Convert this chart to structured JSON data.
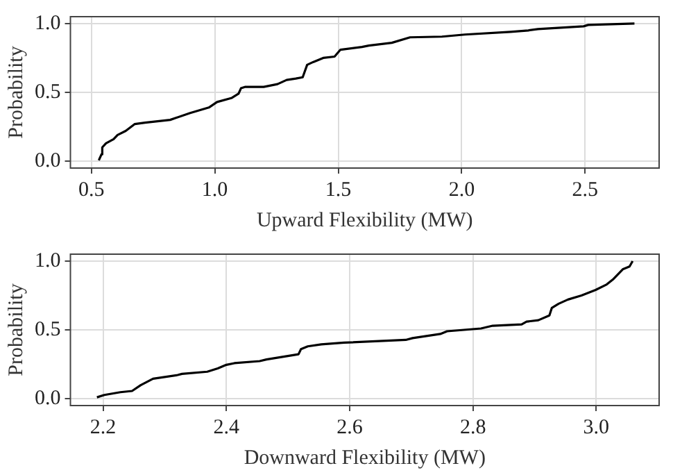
{
  "chart_data": [
    {
      "type": "line",
      "xlabel": "Upward Flexibility (MW)",
      "ylabel": "Probability",
      "xlim": [
        0.415,
        2.8
      ],
      "xticks": [
        {
          "value": 0.5,
          "label": "0.5"
        },
        {
          "value": 1,
          "label": "1.0"
        },
        {
          "value": 1.5,
          "label": "1.5"
        },
        {
          "value": 2,
          "label": "2.0"
        },
        {
          "value": 2.5,
          "label": "2.5"
        }
      ],
      "ylim": [
        -0.05,
        1.05
      ],
      "yticks": [
        {
          "value": 0,
          "label": "0.0"
        },
        {
          "value": 0.5,
          "label": "0.5"
        },
        {
          "value": 1,
          "label": "1.0"
        }
      ],
      "grid": true,
      "legend": false,
      "marker": "none",
      "line_style": "solid",
      "series": [
        {
          "color": "#000000",
          "x": [
            0.53,
            0.541,
            0.544,
            0.559,
            0.59,
            0.606,
            0.639,
            0.676,
            0.717,
            0.819,
            0.9,
            0.976,
            1.009,
            1.069,
            1.096,
            1.106,
            1.124,
            1.198,
            1.254,
            1.291,
            1.328,
            1.356,
            1.374,
            1.398,
            1.439,
            1.485,
            1.509,
            1.596,
            1.624,
            1.717,
            1.791,
            1.92,
            2.013,
            2.198,
            2.27,
            2.309,
            2.494,
            2.513,
            2.7
          ],
          "values": [
            0.006,
            0.05,
            0.1,
            0.13,
            0.16,
            0.19,
            0.22,
            0.27,
            0.28,
            0.3,
            0.35,
            0.39,
            0.43,
            0.46,
            0.49,
            0.53,
            0.54,
            0.54,
            0.56,
            0.59,
            0.6,
            0.61,
            0.7,
            0.72,
            0.75,
            0.76,
            0.81,
            0.83,
            0.84,
            0.86,
            0.9,
            0.905,
            0.92,
            0.94,
            0.95,
            0.96,
            0.98,
            0.99,
            1.0
          ]
        }
      ]
    },
    {
      "type": "line",
      "xlabel": "Downward Flexibility (MW)",
      "ylabel": "Probability",
      "xlim": [
        2.147,
        3.102
      ],
      "xticks": [
        2.2,
        2.4,
        2.6,
        2.8,
        {
          "value": 3,
          "label": "3.0"
        }
      ],
      "ylim": [
        -0.05,
        1.05
      ],
      "yticks": [
        {
          "value": 0,
          "label": "0.0"
        },
        {
          "value": 0.5,
          "label": "0.5"
        },
        {
          "value": 1,
          "label": "1.0"
        }
      ],
      "grid": true,
      "legend": false,
      "marker": "none",
      "line_style": "solid",
      "series": [
        {
          "color": "#000000",
          "x": [
            2.19,
            2.202,
            2.228,
            2.247,
            2.261,
            2.281,
            2.321,
            2.328,
            2.369,
            2.386,
            2.4,
            2.413,
            2.454,
            2.465,
            2.517,
            2.521,
            2.532,
            2.554,
            2.591,
            2.691,
            2.702,
            2.747,
            2.758,
            2.813,
            2.832,
            2.879,
            2.887,
            2.906,
            2.924,
            2.928,
            2.939,
            2.954,
            2.976,
            2.999,
            3.017,
            3.028,
            3.043,
            3.054,
            3.059
          ],
          "values": [
            0.01,
            0.027,
            0.047,
            0.056,
            0.098,
            0.145,
            0.172,
            0.18,
            0.196,
            0.22,
            0.246,
            0.258,
            0.273,
            0.285,
            0.323,
            0.36,
            0.38,
            0.395,
            0.407,
            0.427,
            0.44,
            0.47,
            0.49,
            0.51,
            0.53,
            0.54,
            0.56,
            0.57,
            0.605,
            0.66,
            0.69,
            0.72,
            0.75,
            0.79,
            0.83,
            0.87,
            0.94,
            0.96,
            1.0
          ]
        }
      ]
    }
  ]
}
